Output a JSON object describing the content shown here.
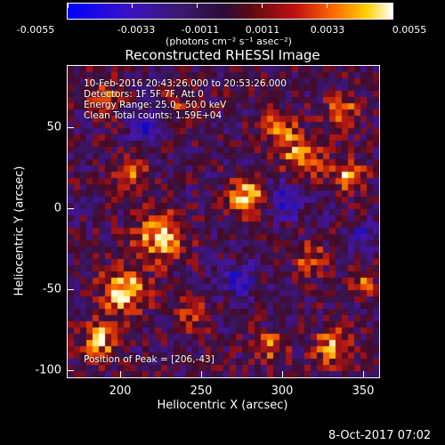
{
  "colorbar": {
    "ticks": [
      "-0.0055",
      "-0.0033",
      "-0.0011",
      "0.0011",
      "0.0033",
      "0.0055"
    ],
    "unit": "(photons cm⁻² s⁻¹ asec⁻²)"
  },
  "title": "Reconstructed RHESSI Image",
  "info": {
    "time": "10-Feb-2016 20:43:26.000 to 20:53:26.000",
    "detectors": "Detectors: 1F 5F 7F, Att 0",
    "energy": "Energy Range: 25.0 - 50.0 keV",
    "method": "Clean    Total counts: 1.59E+04",
    "peak": "Position of Peak = [206,-43]"
  },
  "axes": {
    "xlabel": "Heliocentric X (arcsec)",
    "ylabel": "Heliocentric Y (arcsec)",
    "xticks": [
      "200",
      "250",
      "300",
      "350"
    ],
    "yticks": [
      "50",
      "0",
      "-50",
      "-100"
    ]
  },
  "datestamp": "8-Oct-2017 07:02"
}
